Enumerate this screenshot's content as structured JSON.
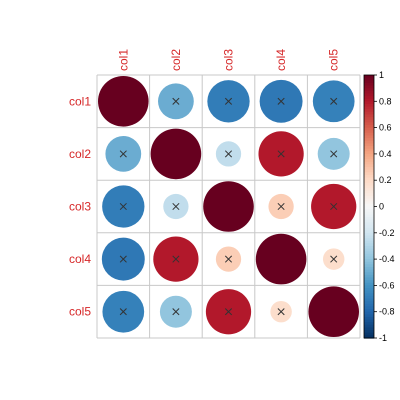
{
  "chart_data": {
    "type": "heatmap",
    "variables": [
      "col1",
      "col2",
      "col3",
      "col4",
      "col5"
    ],
    "matrix": [
      [
        1.0,
        -0.5,
        -0.7,
        -0.72,
        -0.68
      ],
      [
        -0.5,
        1.0,
        -0.25,
        0.8,
        -0.4
      ],
      [
        -0.7,
        -0.25,
        1.0,
        0.25,
        0.8
      ],
      [
        -0.72,
        0.8,
        0.25,
        1.0,
        0.18
      ],
      [
        -0.68,
        -0.4,
        0.8,
        0.18,
        1.0
      ]
    ],
    "crossed": [
      [
        false,
        true,
        true,
        true,
        true
      ],
      [
        true,
        false,
        true,
        true,
        true
      ],
      [
        true,
        true,
        false,
        true,
        true
      ],
      [
        true,
        true,
        true,
        false,
        true
      ],
      [
        true,
        true,
        true,
        true,
        false
      ]
    ],
    "legend": {
      "min": -1,
      "max": 1,
      "ticks": [
        "1",
        "0.8",
        "0.6",
        "0.4",
        "0.2",
        "0",
        "-0.2",
        "-0.4",
        "-0.6",
        "-0.8",
        "-1"
      ]
    },
    "colors": {
      "label_color": "#d62728",
      "negative_end": "#053061",
      "neutral": "#f7f7f7",
      "positive_end": "#67001f"
    }
  }
}
